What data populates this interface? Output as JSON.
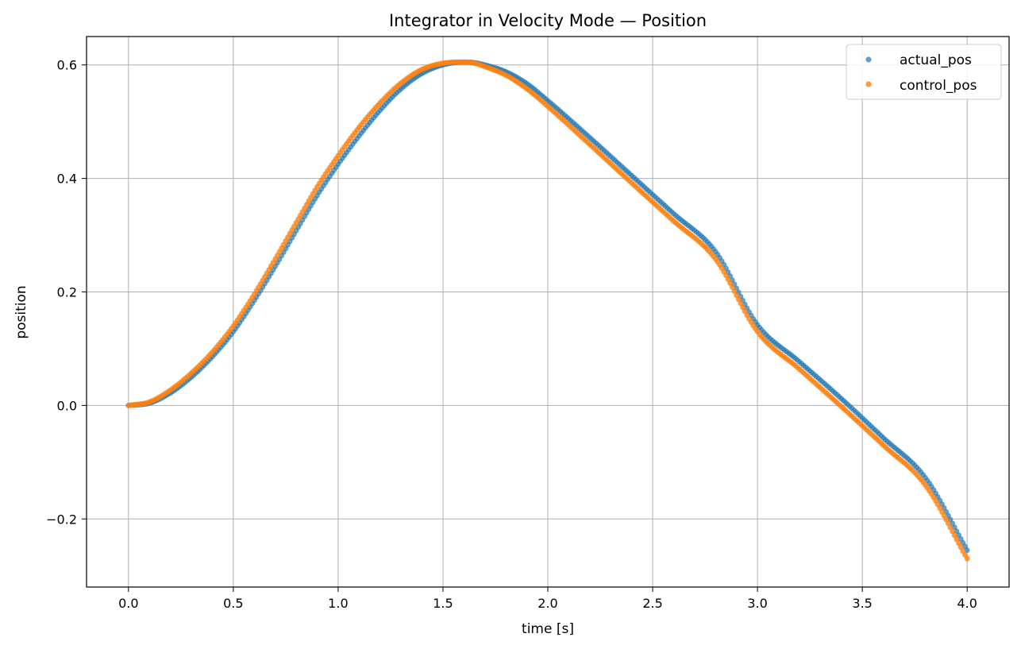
{
  "chart_data": {
    "type": "scatter",
    "title": "Integrator in Velocity Mode — Position",
    "xlabel": "time [s]",
    "ylabel": "position",
    "xlim": [
      -0.2,
      4.2
    ],
    "ylim": [
      -0.32,
      0.65
    ],
    "x_ticks": [
      0.0,
      0.5,
      1.0,
      1.5,
      2.0,
      2.5,
      3.0,
      3.5,
      4.0
    ],
    "x_tick_labels": [
      "0.0",
      "0.5",
      "1.0",
      "1.5",
      "2.0",
      "2.5",
      "3.0",
      "3.5",
      "4.0"
    ],
    "y_ticks": [
      -0.2,
      0.0,
      0.2,
      0.4,
      0.6
    ],
    "y_tick_labels": [
      "−0.2",
      "0.0",
      "0.2",
      "0.4",
      "0.6"
    ],
    "grid": true,
    "legend_position": "top-right",
    "series": [
      {
        "name": "actual_pos",
        "color": "#1f77b4",
        "x": [
          0.0,
          0.1,
          0.2,
          0.3,
          0.4,
          0.5,
          0.6,
          0.7,
          0.8,
          0.9,
          1.0,
          1.1,
          1.2,
          1.3,
          1.4,
          1.5,
          1.6,
          1.65,
          1.7,
          1.8,
          1.9,
          2.0,
          2.2,
          2.4,
          2.6,
          2.8,
          3.0,
          3.2,
          3.4,
          3.6,
          3.8,
          4.0
        ],
        "y": [
          0.0,
          0.004,
          0.022,
          0.05,
          0.086,
          0.13,
          0.185,
          0.245,
          0.308,
          0.37,
          0.425,
          0.475,
          0.52,
          0.558,
          0.585,
          0.6,
          0.605,
          0.604,
          0.6,
          0.588,
          0.567,
          0.537,
          0.472,
          0.405,
          0.338,
          0.271,
          0.142,
          0.077,
          0.012,
          -0.057,
          -0.127,
          -0.255
        ]
      },
      {
        "name": "control_pos",
        "color": "#ff7f0e",
        "x": [
          0.0,
          0.1,
          0.2,
          0.3,
          0.4,
          0.5,
          0.6,
          0.7,
          0.8,
          0.9,
          1.0,
          1.1,
          1.2,
          1.3,
          1.4,
          1.5,
          1.6,
          1.65,
          1.7,
          1.8,
          1.9,
          2.0,
          2.2,
          2.4,
          2.6,
          2.8,
          3.0,
          3.2,
          3.4,
          3.6,
          3.8,
          4.0
        ],
        "y": [
          0.0,
          0.006,
          0.027,
          0.057,
          0.094,
          0.14,
          0.196,
          0.258,
          0.322,
          0.385,
          0.44,
          0.49,
          0.533,
          0.568,
          0.592,
          0.603,
          0.605,
          0.603,
          0.597,
          0.582,
          0.558,
          0.527,
          0.46,
          0.392,
          0.325,
          0.258,
          0.13,
          0.064,
          -0.002,
          -0.07,
          -0.14,
          -0.27
        ]
      }
    ]
  }
}
